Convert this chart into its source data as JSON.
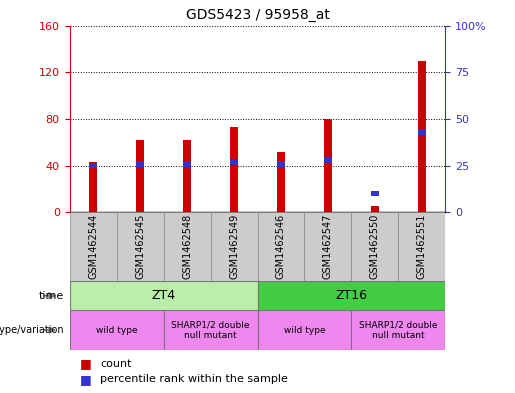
{
  "title": "GDS5423 / 95958_at",
  "samples": [
    "GSM1462544",
    "GSM1462545",
    "GSM1462548",
    "GSM1462549",
    "GSM1462546",
    "GSM1462547",
    "GSM1462550",
    "GSM1462551"
  ],
  "count_values": [
    43,
    62,
    62,
    73,
    52,
    80,
    5,
    130
  ],
  "percentile_values": [
    25,
    26,
    26,
    27,
    26,
    28,
    10,
    43
  ],
  "left_ylim": [
    0,
    160
  ],
  "right_ylim": [
    0,
    100
  ],
  "left_yticks": [
    0,
    40,
    80,
    120,
    160
  ],
  "right_yticks": [
    0,
    25,
    50,
    75,
    100
  ],
  "right_yticklabels": [
    "0",
    "25",
    "50",
    "75",
    "100%"
  ],
  "bar_color": "#cc0000",
  "percentile_color": "#3333cc",
  "bar_width": 0.18,
  "time_groups": [
    {
      "label": "ZT4",
      "start": 0,
      "end": 4,
      "color": "#bbeeaa"
    },
    {
      "label": "ZT16",
      "start": 4,
      "end": 8,
      "color": "#44cc44"
    }
  ],
  "genotype_groups": [
    {
      "label": "wild type",
      "start": 0,
      "end": 2,
      "color": "#ee88ee"
    },
    {
      "label": "SHARP1/2 double\nnull mutant",
      "start": 2,
      "end": 4,
      "color": "#ee88ee"
    },
    {
      "label": "wild type",
      "start": 4,
      "end": 6,
      "color": "#ee88ee"
    },
    {
      "label": "SHARP1/2 double\nnull mutant",
      "start": 6,
      "end": 8,
      "color": "#ee88ee"
    }
  ],
  "sample_bg_color": "#cccccc",
  "legend_count_label": "count",
  "legend_percentile_label": "percentile rank within the sample",
  "time_label": "time",
  "genotype_label": "genotype/variation"
}
